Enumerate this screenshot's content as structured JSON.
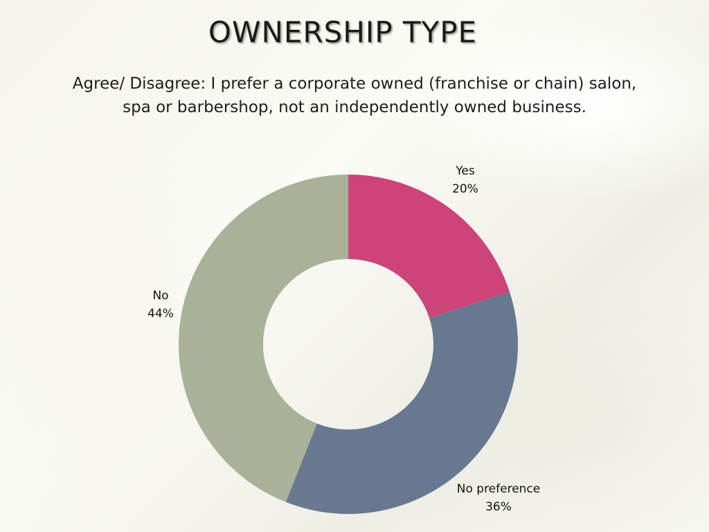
{
  "chart_data": {
    "type": "pie",
    "donut": true,
    "title": "OWNERSHIP TYPE",
    "subtitle": "Agree/ Disagree: I prefer a corporate owned (franchise or chain) salon, spa or barbershop, not an independently owned business.",
    "slices": [
      {
        "label": "Yes",
        "value": 20,
        "value_label": "20%",
        "color": "#CC4479"
      },
      {
        "label": "No preference",
        "value": 36,
        "value_label": "36%",
        "color": "#687890"
      },
      {
        "label": "No",
        "value": 44,
        "value_label": "44%",
        "color": "#A9B298"
      }
    ]
  }
}
